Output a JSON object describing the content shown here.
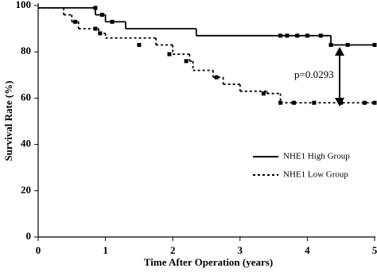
{
  "chart_data": {
    "type": "line",
    "drawstyle": "steps-post",
    "x_label": "Time After Operation (years)",
    "y_label": "Survival Rate (%)",
    "annotation": "p=0.0293",
    "legend": "right",
    "xlim": [
      0,
      5
    ],
    "xticks": [
      0,
      1,
      2,
      3,
      4,
      5
    ],
    "ylim": [
      0,
      100
    ],
    "yticks": [
      0,
      20,
      40,
      60,
      80,
      100
    ],
    "series": [
      {
        "name": "NHE1 High Group",
        "color": "#000000",
        "linestyle": "solid",
        "x": [
          0,
          0.85,
          1.0,
          1.3,
          2.35,
          4.35
        ],
        "values": [
          99,
          96,
          93,
          90,
          87,
          83
        ],
        "censored": {
          "x": [
            0.85,
            0.95,
            1.1,
            3.6,
            3.7,
            3.85,
            4.0,
            4.2,
            4.35,
            4.6,
            5.0
          ],
          "values": [
            99,
            96,
            93,
            87,
            87,
            87,
            87,
            87,
            83,
            83,
            83
          ]
        }
      },
      {
        "name": "NHE1 Low Group",
        "color": "#000000",
        "linestyle": "dotted",
        "x": [
          0,
          0.38,
          0.5,
          0.6,
          0.9,
          1.0,
          1.75,
          2.0,
          2.25,
          2.3,
          2.6,
          2.75,
          3.0,
          3.4,
          3.6
        ],
        "values": [
          99,
          96,
          93,
          90,
          88,
          86,
          83,
          79,
          76,
          72,
          69,
          66,
          63,
          62,
          58
        ],
        "censored": {
          "x": [
            0.55,
            0.85,
            0.92,
            1.5,
            1.95,
            2.2,
            2.65,
            3.35,
            3.6,
            3.8,
            4.1,
            4.5,
            4.85,
            5.0
          ],
          "values": [
            93,
            90,
            88,
            83,
            79,
            76,
            69,
            62,
            58,
            58,
            58,
            58,
            58,
            58
          ]
        }
      }
    ]
  }
}
